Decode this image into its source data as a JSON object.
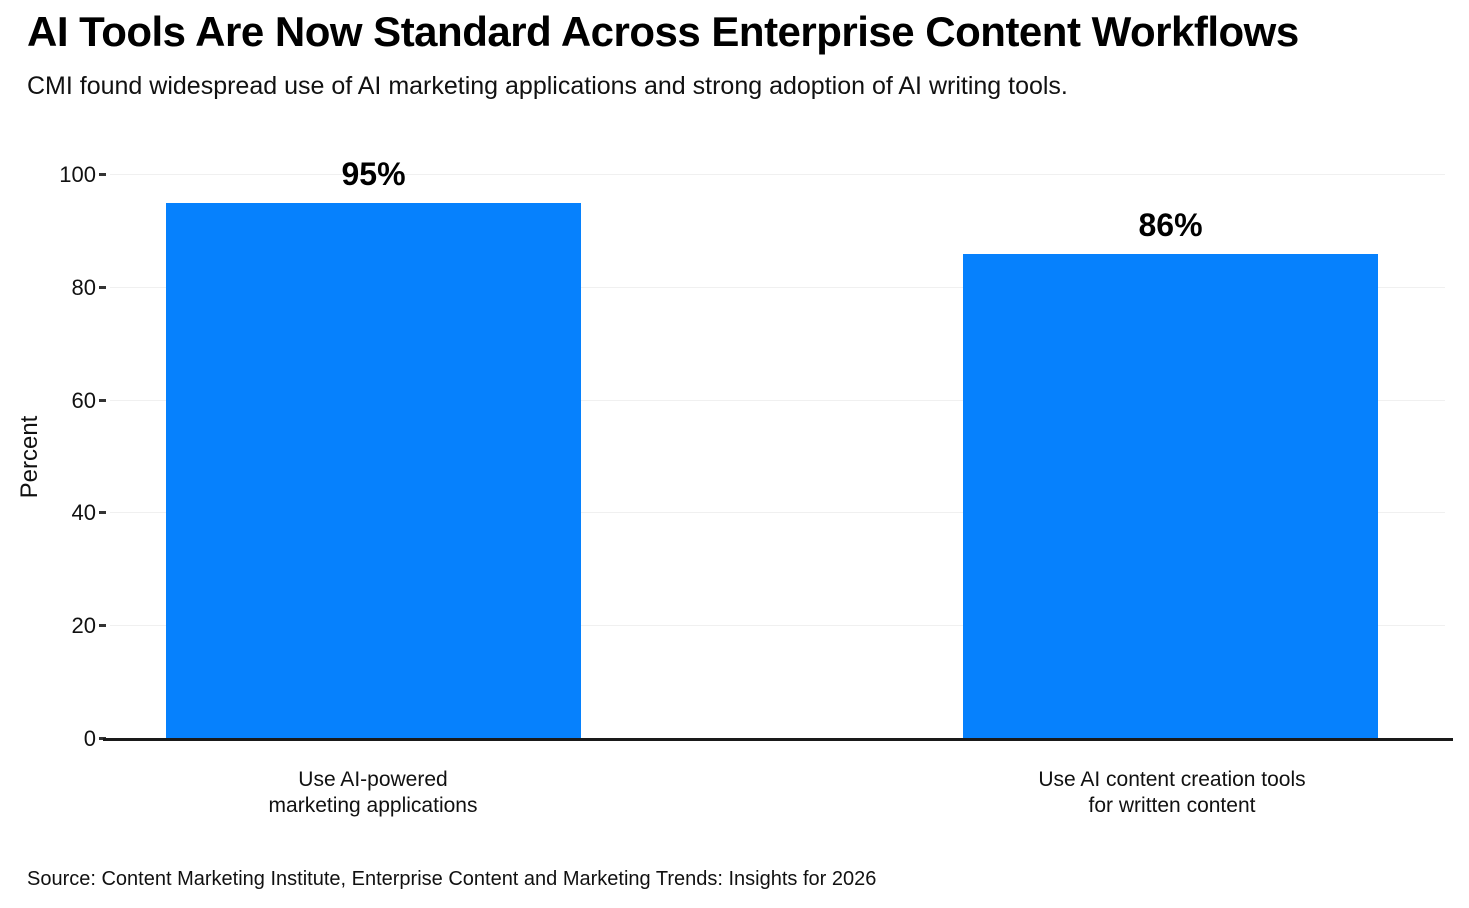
{
  "header": {
    "title": "AI Tools Are Now Standard Across Enterprise Content Workflows",
    "subtitle": "CMI found widespread use of AI marketing applications and strong adoption of AI writing tools."
  },
  "chart_data": {
    "type": "bar",
    "title": "AI Tools Are Now Standard Across Enterprise Content Workflows",
    "subtitle": "CMI found widespread use of AI marketing applications and strong adoption of AI writing tools.",
    "categories": [
      "Use AI-powered\nmarketing applications",
      "Use AI content creation tools\nfor written content"
    ],
    "values": [
      95,
      86
    ],
    "value_labels": [
      "95%",
      "86%"
    ],
    "xlabel": "",
    "ylabel": "Percent",
    "ylim": [
      0,
      100
    ],
    "yticks": [
      0,
      20,
      40,
      60,
      80,
      100
    ],
    "grid": true,
    "legend": "none",
    "bar_color": "#0681fd"
  },
  "colors": {
    "bar": "#0681fd",
    "gridline": "#f0f0f0",
    "axis": "#1a1a1a",
    "text": "#111111"
  },
  "source": "Source: Content Marketing Institute, Enterprise Content and Marketing Trends: Insights for 2026"
}
